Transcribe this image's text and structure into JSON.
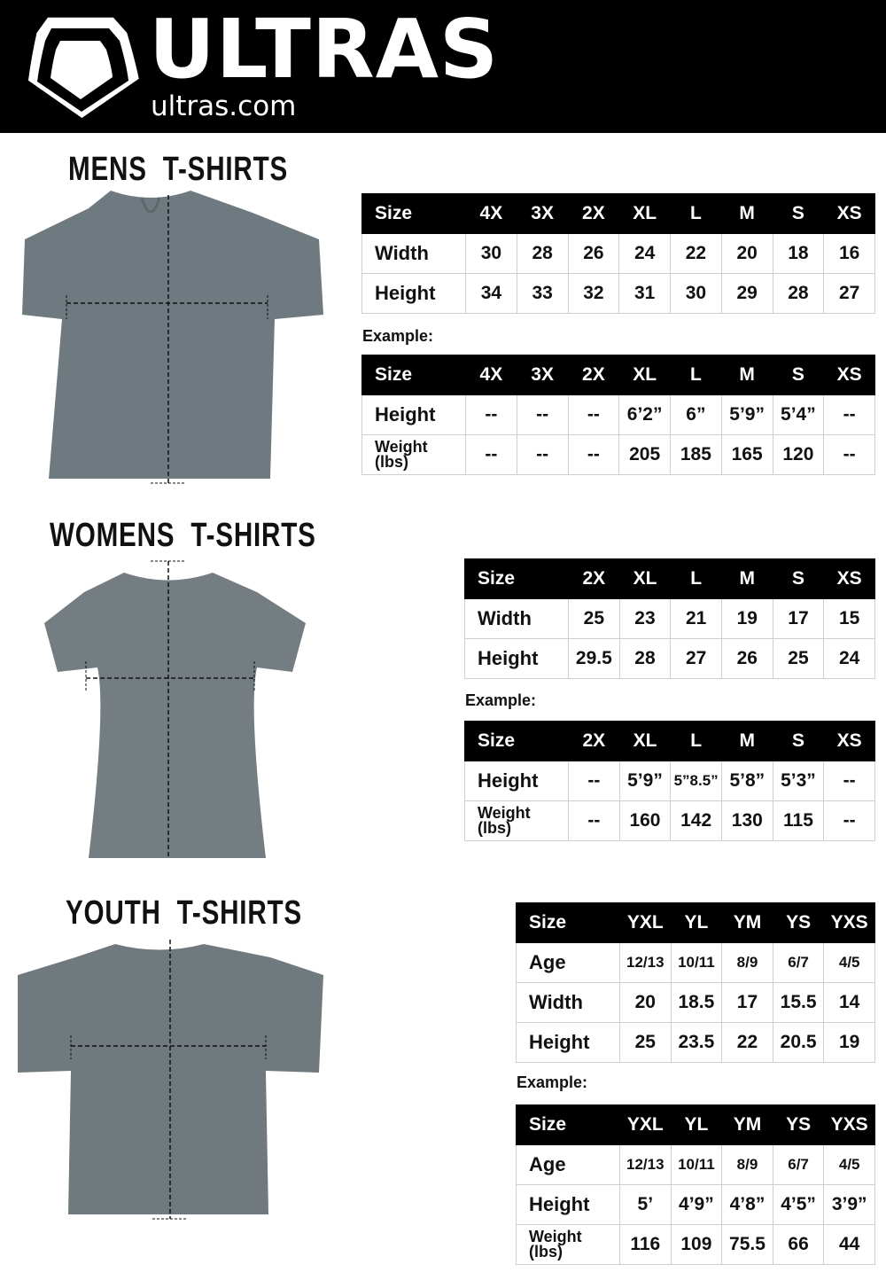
{
  "header": {
    "brand": "ULTRAS",
    "domain": "ultras.com",
    "colors": {
      "background": "#000000",
      "text": "#ffffff"
    }
  },
  "sections": [
    {
      "title": "MENS  T-SHIRTS",
      "example_label": "Example:",
      "size_table": {
        "headers": [
          "Size",
          "4X",
          "3X",
          "2X",
          "XL",
          "L",
          "M",
          "S",
          "XS"
        ],
        "rows": [
          [
            "Width",
            "30",
            "28",
            "26",
            "24",
            "22",
            "20",
            "18",
            "16"
          ],
          [
            "Height",
            "34",
            "33",
            "32",
            "31",
            "30",
            "29",
            "28",
            "27"
          ]
        ]
      },
      "example_table": {
        "headers": [
          "Size",
          "4X",
          "3X",
          "2X",
          "XL",
          "L",
          "M",
          "S",
          "XS"
        ],
        "rows": [
          [
            "Height",
            "--",
            "--",
            "--",
            "6’2”",
            "6”",
            "5’9”",
            "5’4”",
            "--"
          ],
          [
            "Weight (lbs)",
            "--",
            "--",
            "--",
            "205",
            "185",
            "165",
            "120",
            "--"
          ]
        ]
      }
    },
    {
      "title": "WOMENS  T-SHIRTS",
      "example_label": "Example:",
      "size_table": {
        "headers": [
          "Size",
          "2X",
          "XL",
          "L",
          "M",
          "S",
          "XS"
        ],
        "rows": [
          [
            "Width",
            "25",
            "23",
            "21",
            "19",
            "17",
            "15"
          ],
          [
            "Height",
            "29.5",
            "28",
            "27",
            "26",
            "25",
            "24"
          ]
        ]
      },
      "example_table": {
        "headers": [
          "Size",
          "2X",
          "XL",
          "L",
          "M",
          "S",
          "XS"
        ],
        "rows": [
          [
            "Height",
            "--",
            "5’9”",
            "5”8.5”",
            "5’8”",
            "5’3”",
            "--"
          ],
          [
            "Weight (lbs)",
            "--",
            "160",
            "142",
            "130",
            "115",
            "--"
          ]
        ]
      }
    },
    {
      "title": "YOUTH  T-SHIRTS",
      "example_label": "Example:",
      "size_table": {
        "headers": [
          "Size",
          "YXL",
          "YL",
          "YM",
          "YS",
          "YXS"
        ],
        "rows": [
          [
            "Age",
            "12/13",
            "10/11",
            "8/9",
            "6/7",
            "4/5"
          ],
          [
            "Width",
            "20",
            "18.5",
            "17",
            "15.5",
            "14"
          ],
          [
            "Height",
            "25",
            "23.5",
            "22",
            "20.5",
            "19"
          ]
        ]
      },
      "example_table": {
        "headers": [
          "Size",
          "YXL",
          "YL",
          "YM",
          "YS",
          "YXS"
        ],
        "rows": [
          [
            "Age",
            "12/13",
            "10/11",
            "8/9",
            "6/7",
            "4/5"
          ],
          [
            "Height",
            "5’",
            "4’9”",
            "4’8”",
            "4’5”",
            "3’9”"
          ],
          [
            "Weight (lbs)",
            "116",
            "109",
            "75.5",
            "66",
            "44"
          ]
        ]
      }
    }
  ]
}
